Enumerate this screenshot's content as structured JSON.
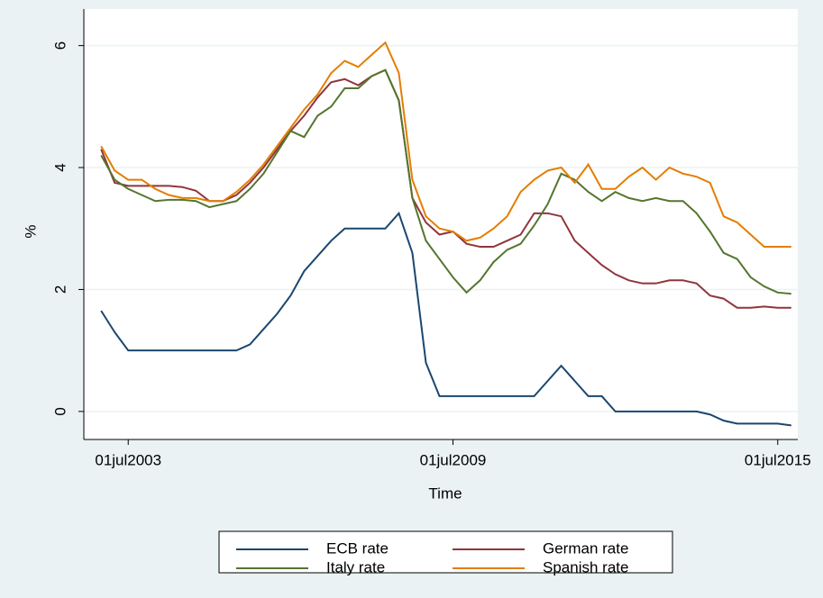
{
  "chart_data": {
    "type": "line",
    "x_label": "Time",
    "y_label": "%",
    "x": [
      2003.0,
      2003.25,
      2003.5,
      2003.75,
      2004.0,
      2004.25,
      2004.5,
      2004.75,
      2005.0,
      2005.25,
      2005.5,
      2005.75,
      2006.0,
      2006.25,
      2006.5,
      2006.75,
      2007.0,
      2007.25,
      2007.5,
      2007.75,
      2008.0,
      2008.25,
      2008.5,
      2008.75,
      2009.0,
      2009.25,
      2009.5,
      2009.75,
      2010.0,
      2010.25,
      2010.5,
      2010.75,
      2011.0,
      2011.25,
      2011.5,
      2011.75,
      2012.0,
      2012.25,
      2012.5,
      2012.75,
      2013.0,
      2013.25,
      2013.5,
      2013.75,
      2014.0,
      2014.25,
      2014.5,
      2014.75,
      2015.0,
      2015.25,
      2015.5,
      2015.75
    ],
    "series": [
      {
        "name": "ECB rate",
        "color": "#1a476f",
        "values": [
          1.65,
          1.3,
          1.0,
          1.0,
          1.0,
          1.0,
          1.0,
          1.0,
          1.0,
          1.0,
          1.0,
          1.1,
          1.35,
          1.6,
          1.9,
          2.3,
          2.55,
          2.8,
          3.0,
          3.0,
          3.0,
          3.0,
          3.25,
          2.6,
          0.8,
          0.25,
          0.25,
          0.25,
          0.25,
          0.25,
          0.25,
          0.25,
          0.25,
          0.5,
          0.75,
          0.5,
          0.25,
          0.25,
          0.0,
          0.0,
          0.0,
          0.0,
          0.0,
          0.0,
          0.0,
          -0.05,
          -0.15,
          -0.2,
          -0.2,
          -0.2,
          -0.2,
          -0.23
        ]
      },
      {
        "name": "German rate",
        "color": "#90353b",
        "values": [
          4.3,
          3.75,
          3.7,
          3.7,
          3.7,
          3.7,
          3.68,
          3.62,
          3.45,
          3.45,
          3.55,
          3.75,
          4.0,
          4.3,
          4.6,
          4.85,
          5.15,
          5.4,
          5.45,
          5.35,
          5.5,
          5.6,
          5.1,
          3.5,
          3.1,
          2.9,
          2.95,
          2.75,
          2.7,
          2.7,
          2.8,
          2.9,
          3.25,
          3.25,
          3.2,
          2.8,
          2.6,
          2.4,
          2.25,
          2.15,
          2.1,
          2.1,
          2.15,
          2.15,
          2.1,
          1.9,
          1.85,
          1.7,
          1.7,
          1.72,
          1.7,
          1.7
        ]
      },
      {
        "name": "Italy rate",
        "color": "#55752f",
        "values": [
          4.2,
          3.8,
          3.65,
          3.55,
          3.45,
          3.47,
          3.47,
          3.45,
          3.35,
          3.4,
          3.45,
          3.65,
          3.9,
          4.25,
          4.6,
          4.5,
          4.85,
          5.0,
          5.3,
          5.3,
          5.5,
          5.6,
          5.1,
          3.5,
          2.8,
          2.5,
          2.2,
          1.95,
          2.15,
          2.45,
          2.65,
          2.75,
          3.05,
          3.4,
          3.9,
          3.8,
          3.6,
          3.45,
          3.6,
          3.5,
          3.45,
          3.5,
          3.45,
          3.45,
          3.25,
          2.95,
          2.6,
          2.5,
          2.2,
          2.05,
          1.95,
          1.93
        ]
      },
      {
        "name": "Spanish rate",
        "color": "#e37e00",
        "values": [
          4.35,
          3.95,
          3.8,
          3.8,
          3.65,
          3.55,
          3.5,
          3.5,
          3.45,
          3.45,
          3.6,
          3.8,
          4.05,
          4.35,
          4.65,
          4.95,
          5.2,
          5.55,
          5.75,
          5.65,
          5.85,
          6.05,
          5.55,
          3.8,
          3.2,
          3.0,
          2.95,
          2.8,
          2.85,
          3.0,
          3.2,
          3.6,
          3.8,
          3.95,
          4.0,
          3.75,
          4.05,
          3.65,
          3.65,
          3.85,
          4.0,
          3.8,
          4.0,
          3.9,
          3.85,
          3.75,
          3.2,
          3.1,
          2.9,
          2.7,
          2.7,
          2.7
        ]
      }
    ],
    "xlim": [
      2002.68,
      2015.87
    ],
    "xticks": [
      {
        "value": 2003.5,
        "label": "01jul2003"
      },
      {
        "value": 2009.5,
        "label": "01jul2009"
      },
      {
        "value": 2015.5,
        "label": "01jul2015"
      }
    ],
    "ylim": [
      -0.46,
      6.6
    ],
    "yticks": [
      0,
      2,
      4,
      6
    ],
    "grid": true
  }
}
